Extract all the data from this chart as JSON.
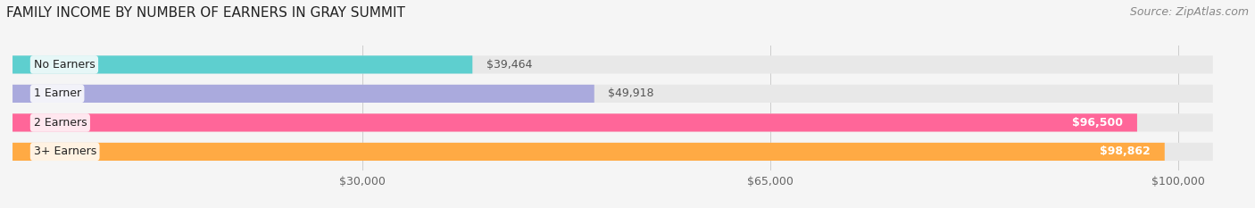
{
  "title": "FAMILY INCOME BY NUMBER OF EARNERS IN GRAY SUMMIT",
  "source": "Source: ZipAtlas.com",
  "categories": [
    "No Earners",
    "1 Earner",
    "2 Earners",
    "3+ Earners"
  ],
  "values": [
    39464,
    49918,
    96500,
    98862
  ],
  "bar_colors": [
    "#5ECFCF",
    "#AAAADD",
    "#FF6699",
    "#FFAA44"
  ],
  "bar_bg_color": "#E8E8E8",
  "value_labels": [
    "$39,464",
    "$49,918",
    "$96,500",
    "$98,862"
  ],
  "x_ticks": [
    30000,
    65000,
    100000
  ],
  "x_tick_labels": [
    "$30,000",
    "$65,000",
    "$100,000"
  ],
  "xlim": [
    0,
    105000
  ],
  "max_bar_width": 103000,
  "title_fontsize": 11,
  "source_fontsize": 9,
  "label_fontsize": 9,
  "tick_fontsize": 9,
  "background_color": "#F5F5F5"
}
